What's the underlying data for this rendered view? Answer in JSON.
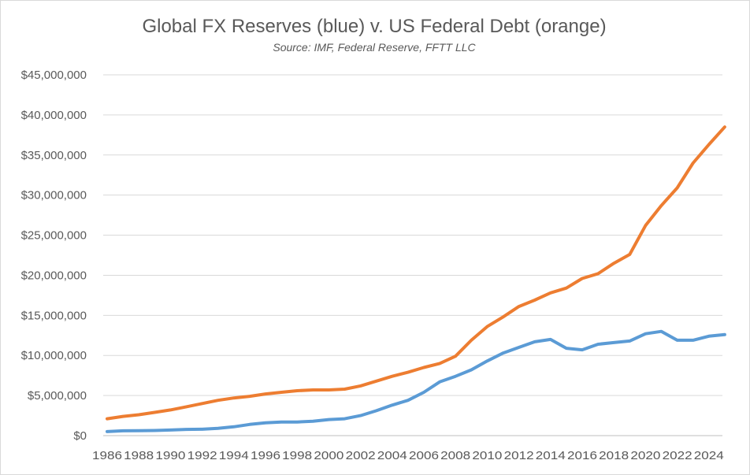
{
  "chart_data": {
    "type": "line",
    "title": "Global FX Reserves (blue) v. US Federal Debt (orange)",
    "subtitle": "Source: IMF, Federal Reserve, FFTT LLC",
    "xlabel": "",
    "ylabel": "",
    "ylim": [
      0,
      45000000
    ],
    "y_ticks": [
      "$0",
      "$5,000,000",
      "$10,000,000",
      "$15,000,000",
      "$20,000,000",
      "$25,000,000",
      "$30,000,000",
      "$35,000,000",
      "$40,000,000",
      "$45,000,000"
    ],
    "x_ticks": [
      "1986",
      "1988",
      "1990",
      "1992",
      "1994",
      "1996",
      "1998",
      "2000",
      "2002",
      "2004",
      "2006",
      "2008",
      "2010",
      "2012",
      "2014",
      "2016",
      "2018",
      "2020",
      "2022",
      "2024"
    ],
    "grid": true,
    "legend": "none",
    "x": [
      1986,
      1987,
      1988,
      1989,
      1990,
      1991,
      1992,
      1993,
      1994,
      1995,
      1996,
      1997,
      1998,
      1999,
      2000,
      2001,
      2002,
      2003,
      2004,
      2005,
      2006,
      2007,
      2008,
      2009,
      2010,
      2011,
      2012,
      2013,
      2014,
      2015,
      2016,
      2017,
      2018,
      2019,
      2020,
      2021,
      2022,
      2023,
      2024,
      2025
    ],
    "series": [
      {
        "color": "#5b9bd5",
        "values": [
          500000,
          600000,
          620000,
          640000,
          700000,
          780000,
          800000,
          900000,
          1100000,
          1400000,
          1600000,
          1700000,
          1700000,
          1800000,
          2000000,
          2100000,
          2500000,
          3100000,
          3800000,
          4400000,
          5400000,
          6700000,
          7400000,
          8200000,
          9300000,
          10300000,
          11000000,
          11700000,
          12000000,
          10900000,
          10700000,
          11400000,
          11600000,
          11800000,
          12700000,
          13000000,
          11900000,
          11900000,
          12400000,
          12600000
        ]
      },
      {
        "color": "#ed7d31",
        "values": [
          2100000,
          2400000,
          2600000,
          2900000,
          3200000,
          3600000,
          4000000,
          4400000,
          4700000,
          4900000,
          5200000,
          5400000,
          5600000,
          5700000,
          5700000,
          5800000,
          6200000,
          6800000,
          7400000,
          7900000,
          8500000,
          9000000,
          9900000,
          11900000,
          13600000,
          14800000,
          16100000,
          16900000,
          17800000,
          18400000,
          19600000,
          20200000,
          21500000,
          22600000,
          26200000,
          28700000,
          30900000,
          34000000,
          36300000,
          38500000
        ]
      }
    ]
  }
}
